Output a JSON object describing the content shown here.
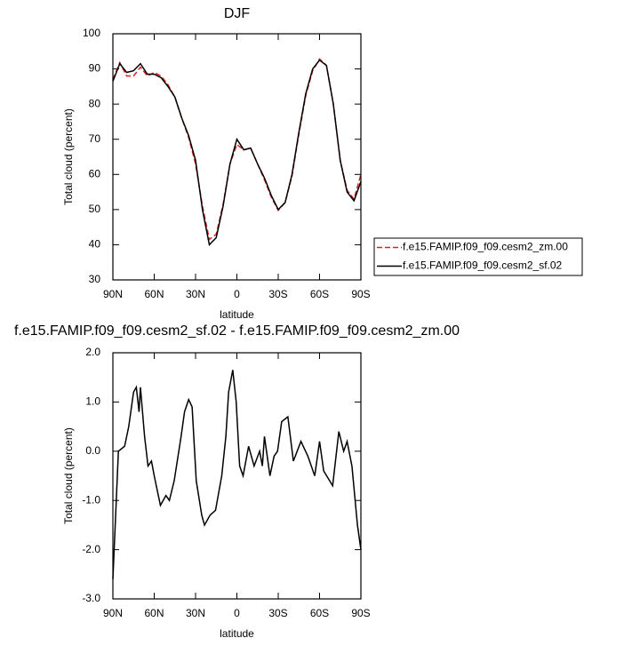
{
  "chart_data": [
    {
      "type": "line",
      "title": "DJF",
      "xlabel": "latitude",
      "ylabel": "Total cloud (percent)",
      "x": [
        90,
        85,
        80,
        75,
        70,
        65,
        60,
        55,
        50,
        45,
        40,
        35,
        30,
        25,
        20,
        15,
        10,
        5,
        0,
        -5,
        -10,
        -15,
        -20,
        -25,
        -30,
        -35,
        -40,
        -45,
        -50,
        -55,
        -60,
        -65,
        -70,
        -75,
        -80,
        -85,
        -90
      ],
      "series": [
        {
          "name": "f.e15.FAMIP.f09_f09.cesm2_zm.00",
          "color": "#e0201b",
          "dash": "dashed",
          "values": [
            87,
            91.8,
            88,
            88,
            90.5,
            88,
            89,
            88,
            85.5,
            82,
            76,
            70.5,
            63,
            51,
            41.5,
            43,
            51.5,
            63,
            68.5,
            67,
            67.5,
            63,
            58.5,
            53.5,
            49.8,
            52,
            59.5,
            71.5,
            82.5,
            89.5,
            92.8,
            91,
            80,
            64,
            55.5,
            53,
            60
          ]
        },
        {
          "name": "f.e15.FAMIP.f09_f09.cesm2_sf.02",
          "color": "#000000",
          "dash": "solid",
          "values": [
            86.5,
            91.5,
            89,
            89.5,
            91.5,
            88.5,
            88.5,
            87.5,
            85,
            82,
            76,
            71,
            64,
            50,
            40,
            42,
            51,
            63,
            70,
            67,
            67.5,
            63,
            59,
            54,
            50,
            52,
            60,
            72,
            83,
            90,
            92.5,
            91,
            80,
            64,
            55,
            52.5,
            58
          ]
        }
      ],
      "xlim": [
        90,
        -90
      ],
      "ylim": [
        30,
        100
      ],
      "xticks": [
        {
          "value": 90,
          "label": "90N"
        },
        {
          "value": 60,
          "label": "60N"
        },
        {
          "value": 30,
          "label": "30N"
        },
        0,
        {
          "value": -30,
          "label": "30S"
        },
        {
          "value": -60,
          "label": "60S"
        },
        {
          "value": -90,
          "label": "90S"
        }
      ],
      "yticks": [
        30,
        40,
        50,
        60,
        70,
        80,
        90,
        100
      ],
      "legend": "right"
    },
    {
      "type": "line",
      "title": "f.e15.FAMIP.f09_f09.cesm2_sf.02 - f.e15.FAMIP.f09_f09.cesm2_zm.00",
      "xlabel": "latitude",
      "ylabel": "Total cloud (percent)",
      "x": [
        90,
        86,
        81.5,
        78.5,
        75,
        73,
        71,
        70,
        67,
        64.5,
        62,
        60,
        55.5,
        51.5,
        49,
        45.5,
        40.5,
        38,
        35,
        32.5,
        29.5,
        25.5,
        23.5,
        19.5,
        15.5,
        11,
        8,
        6,
        3,
        0.5,
        -2,
        -4.5,
        -8.5,
        -12.5,
        -16.5,
        -18.5,
        -20,
        -24,
        -27,
        -29.5,
        -32.5,
        -37,
        -41,
        -46.5,
        -51.5,
        -56.5,
        -60,
        -63,
        -69.5,
        -74,
        -77.5,
        -80,
        -83.5,
        -87.5,
        -90
      ],
      "series": [
        {
          "color": "#000000",
          "dash": "solid",
          "values": [
            -2.6,
            0.0,
            0.1,
            0.5,
            1.2,
            1.3,
            0.8,
            1.3,
            0.3,
            -0.3,
            -0.2,
            -0.5,
            -1.1,
            -0.9,
            -1.0,
            -0.6,
            0.3,
            0.8,
            1.05,
            0.9,
            -0.6,
            -1.3,
            -1.5,
            -1.3,
            -1.2,
            -0.5,
            0.3,
            1.2,
            1.65,
            1.0,
            -0.3,
            -0.5,
            0.1,
            -0.3,
            0.0,
            -0.3,
            0.3,
            -0.5,
            -0.1,
            0.0,
            0.6,
            0.7,
            -0.2,
            0.2,
            -0.1,
            -0.5,
            0.2,
            -0.4,
            -0.7,
            0.4,
            0.0,
            0.2,
            -0.3,
            -1.5,
            -2.0
          ]
        }
      ],
      "xlim": [
        90,
        -90
      ],
      "ylim": [
        -3,
        2
      ],
      "xticks": [
        {
          "value": 90,
          "label": "90N"
        },
        {
          "value": 60,
          "label": "60N"
        },
        {
          "value": 30,
          "label": "30N"
        },
        0,
        {
          "value": -30,
          "label": "30S"
        },
        {
          "value": -60,
          "label": "60S"
        },
        {
          "value": -90,
          "label": "90S"
        }
      ],
      "yticks": [
        {
          "value": -3,
          "label": "-3.0"
        },
        {
          "value": -2,
          "label": "-2.0"
        },
        {
          "value": -1,
          "label": "-1.0"
        },
        {
          "value": 0,
          "label": "0.0"
        },
        {
          "value": 1,
          "label": "1.0"
        },
        {
          "value": 2,
          "label": "2.0"
        }
      ]
    }
  ]
}
